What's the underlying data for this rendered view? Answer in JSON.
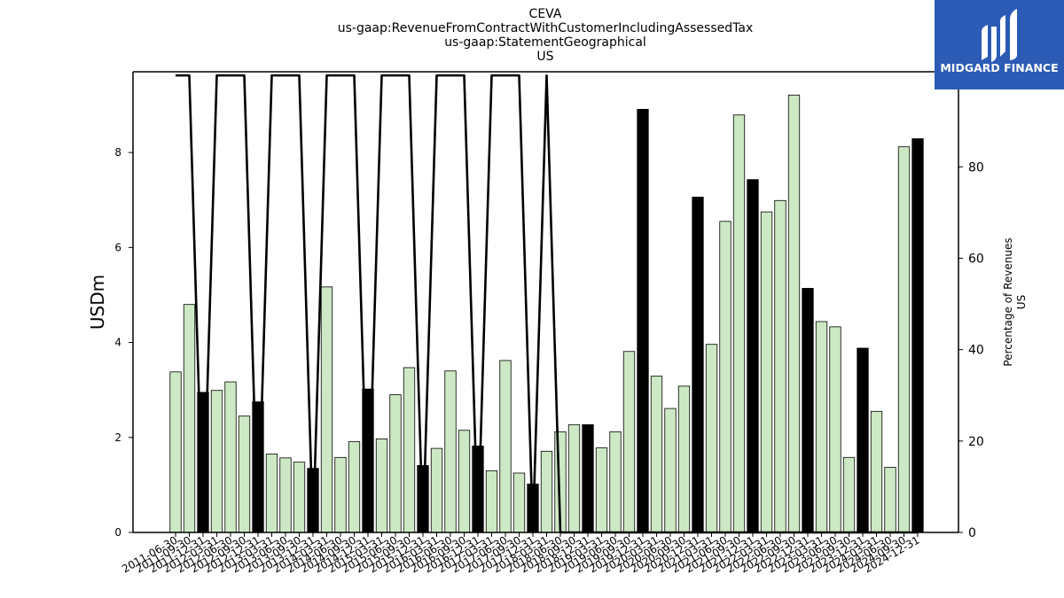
{
  "title_lines": [
    "CEVA",
    "us-gaap:RevenueFromContractWithCustomerIncludingAssessedTax",
    "us-gaap:StatementGeographical",
    "US"
  ],
  "logo": {
    "text": "MIDGARD FINANCE",
    "bg_color": "#2b5bb5",
    "icon": "midgard-m-logo-icon"
  },
  "colors": {
    "quarter_bar": "#cce8c4",
    "year_bar": "#000000",
    "line": "#000000"
  },
  "chart_data": {
    "type": "bar",
    "title": "CEVA us-gaap:RevenueFromContractWithCustomerIncludingAssessedTax us-gaap:StatementGeographical US",
    "xlabel": "",
    "ylabel": "USDm",
    "y2label_lines": [
      "Percentage of Revenues",
      "US"
    ],
    "ylim": [
      0,
      9.7
    ],
    "y2lim": [
      0,
      100.8
    ],
    "yticks": [
      0,
      2,
      4,
      6,
      8
    ],
    "y2ticks": [
      0,
      20,
      40,
      60,
      80,
      100
    ],
    "grid": false,
    "legend": "none",
    "categories": [
      "2011-06-30",
      "2011-09-30",
      "2011-12-31",
      "2012-03-31",
      "2012-06-30",
      "2012-09-30",
      "2012-12-31",
      "2013-03-31",
      "2013-06-30",
      "2013-09-30",
      "2013-12-31",
      "2014-03-31",
      "2014-06-30",
      "2014-09-30",
      "2014-12-31",
      "2015-03-31",
      "2015-06-30",
      "2015-09-30",
      "2015-12-31",
      "2016-03-31",
      "2016-06-30",
      "2016-09-30",
      "2016-12-31",
      "2017-03-31",
      "2017-06-30",
      "2017-09-30",
      "2017-12-31",
      "2018-03-31",
      "2018-06-30",
      "2018-09-30",
      "2018-12-31",
      "2019-03-31",
      "2019-06-30",
      "2019-09-30",
      "2019-12-31",
      "2020-03-31",
      "2020-06-30",
      "2020-09-30",
      "2020-12-31",
      "2021-03-31",
      "2021-06-30",
      "2021-09-30",
      "2021-12-31",
      "2022-03-31",
      "2022-06-30",
      "2022-09-30",
      "2022-12-31",
      "2023-03-31",
      "2023-06-30",
      "2023-09-30",
      "2023-12-31",
      "2024-03-31",
      "2024-06-30",
      "2024-09-30",
      "2024-12-31"
    ],
    "series": [
      {
        "values": [
          3.38,
          4.8,
          2.95,
          2.99,
          3.17,
          2.45,
          2.75,
          1.65,
          1.57,
          1.48,
          1.35,
          5.17,
          1.58,
          1.91,
          3.02,
          1.97,
          2.9,
          3.47,
          1.41,
          1.77,
          3.4,
          2.15,
          1.82,
          1.3,
          3.62,
          1.25,
          1.02,
          1.71,
          2.12,
          2.27,
          2.27,
          1.78,
          2.12,
          3.81,
          8.91,
          3.29,
          2.61,
          3.08,
          7.06,
          3.96,
          6.55,
          8.79,
          7.43,
          6.75,
          6.99,
          9.21,
          5.14,
          4.44,
          4.33,
          1.58,
          3.88,
          2.55,
          1.37,
          8.12,
          8.29
        ],
        "is_year_end": [
          false,
          false,
          true,
          false,
          false,
          false,
          true,
          false,
          false,
          false,
          true,
          false,
          false,
          false,
          true,
          false,
          false,
          false,
          true,
          false,
          false,
          false,
          true,
          false,
          false,
          false,
          true,
          false,
          false,
          false,
          true,
          false,
          false,
          false,
          true,
          false,
          false,
          false,
          true,
          false,
          false,
          false,
          true,
          false,
          false,
          false,
          true,
          false,
          false,
          false,
          true,
          false,
          false,
          false,
          true
        ]
      },
      {
        "axis": "right",
        "type": "line",
        "values": [
          100,
          100,
          0,
          100,
          100,
          100,
          0,
          100,
          100,
          100,
          0,
          100,
          100,
          100,
          0,
          100,
          100,
          100,
          0,
          100,
          100,
          100,
          0,
          100,
          100,
          100,
          0,
          100,
          0,
          0,
          0,
          0,
          0,
          0,
          0,
          0,
          0,
          0,
          0,
          0,
          0,
          0,
          0,
          0,
          0,
          0,
          0,
          0,
          0,
          0,
          0,
          0,
          0,
          0,
          0
        ]
      }
    ]
  }
}
